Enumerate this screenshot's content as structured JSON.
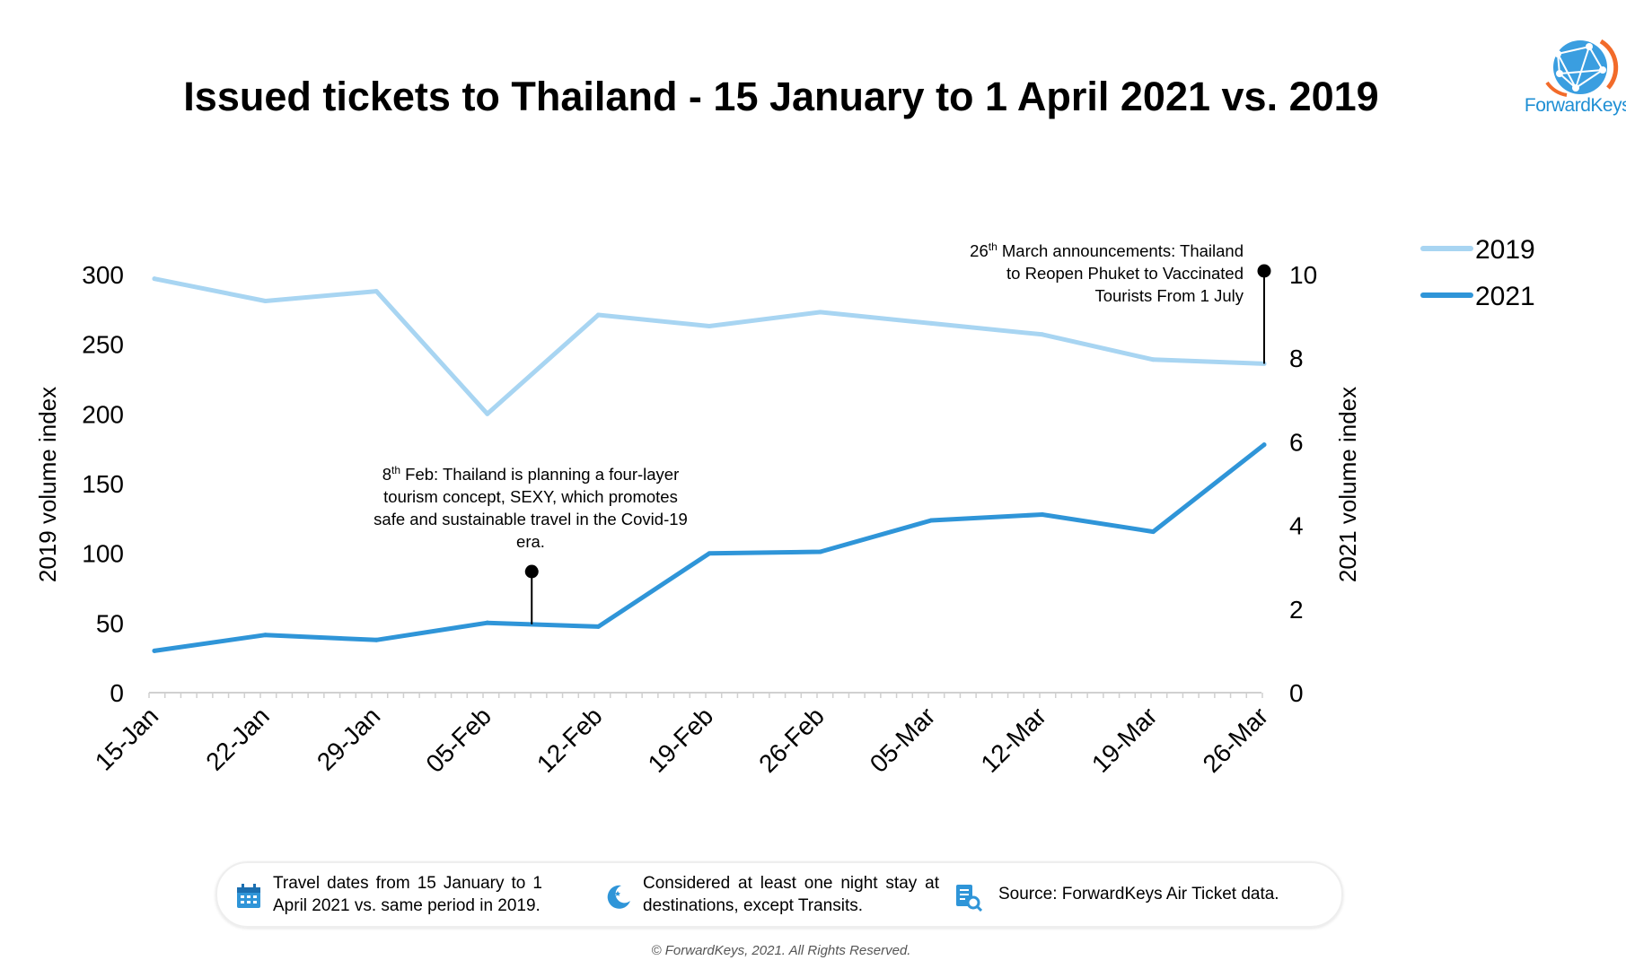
{
  "title": "Issued tickets to Thailand - 15 January to 1 April 2021 vs. 2019",
  "logo": {
    "text": "ForwardKeys",
    "icon": "globe-network-logo"
  },
  "colors": {
    "s2019": "#a8d5f2",
    "s2021": "#2f95d8",
    "accent": "#1f8fd4"
  },
  "chart_data": {
    "type": "line",
    "categories": [
      "15-Jan",
      "22-Jan",
      "29-Jan",
      "05-Feb",
      "12-Feb",
      "19-Feb",
      "26-Feb",
      "05-Mar",
      "12-Mar",
      "19-Mar",
      "26-Mar"
    ],
    "series": [
      {
        "name": "2019",
        "axis": "left",
        "values": [
          297,
          281,
          288,
          200,
          271,
          263,
          273,
          265,
          257,
          239,
          236
        ]
      },
      {
        "name": "2021",
        "axis": "right",
        "values": [
          1.0,
          1.38,
          1.26,
          1.67,
          1.58,
          3.33,
          3.37,
          4.12,
          4.26,
          3.85,
          5.93
        ]
      }
    ],
    "y_left": {
      "label": "2019 volume index",
      "min": 0,
      "max": 300,
      "ticks": [
        "0",
        "50",
        "100",
        "150",
        "200",
        "250",
        "300"
      ]
    },
    "y_right": {
      "label": "2021 volume index",
      "min": 0,
      "max": 10,
      "ticks": [
        "0",
        "2",
        "4",
        "6",
        "8",
        "10"
      ]
    },
    "grid": false,
    "legend": {
      "position": "top-right",
      "entries": [
        "2019",
        "2021"
      ]
    },
    "annotations": [
      {
        "series": "2021",
        "x_index": 3.4,
        "text_sup": "th",
        "text_pre": "8",
        "text_post": " Feb: Thailand is planning a four-layer tourism concept, SEXY, which promotes safe and sustainable travel in the Covid-19 era."
      },
      {
        "series": "2019",
        "x_index": 10,
        "text_pre": "26",
        "text_sup": "th",
        "text_post": " March announcements: Thailand to Reopen Phuket to Vaccinated Tourists From 1 July"
      }
    ]
  },
  "footer": {
    "items": [
      {
        "icon": "calendar-icon",
        "text": "Travel dates from 15 January to 1 April 2021 vs. same period in 2019."
      },
      {
        "icon": "moon-stars-icon",
        "text": "Considered at least one night stay at destinations, except Transits."
      },
      {
        "icon": "document-search-icon",
        "text": "Source: ForwardKeys Air Ticket data."
      }
    ]
  },
  "copyright": "© ForwardKeys, 2021. All Rights Reserved."
}
